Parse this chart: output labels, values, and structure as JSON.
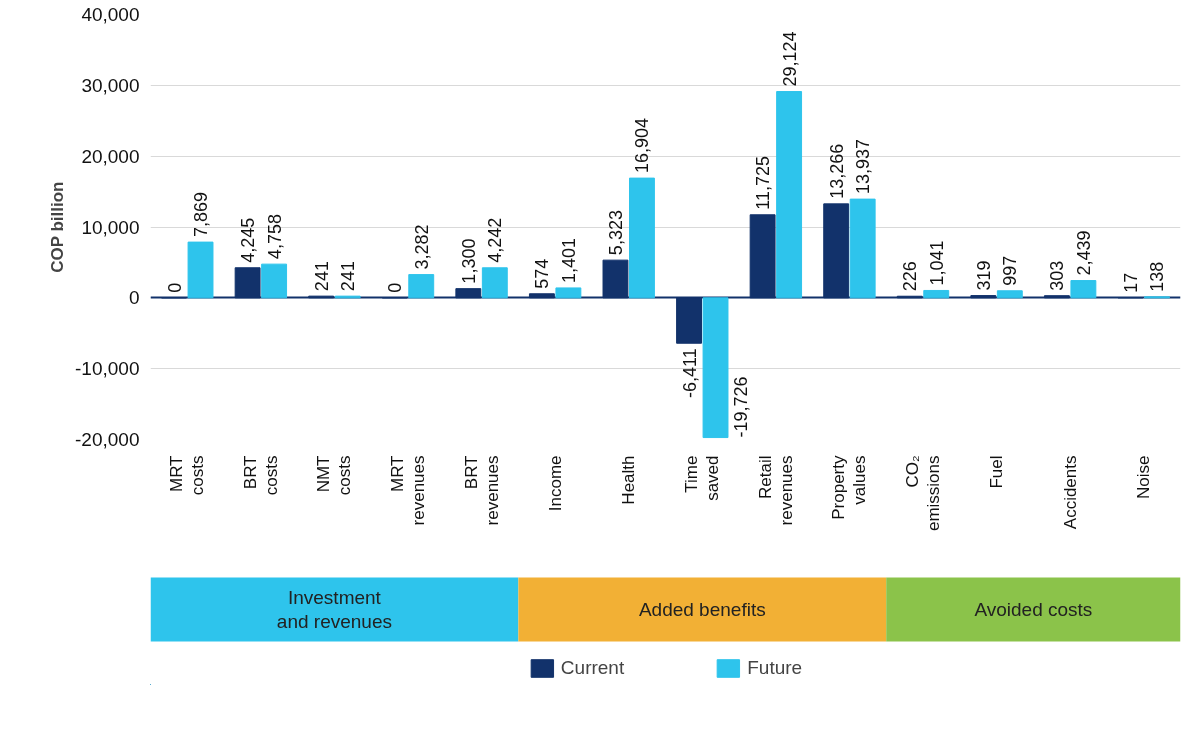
{
  "chart_data": {
    "type": "bar",
    "ylabel": "COP billion",
    "categories": [
      "MRT costs",
      "BRT costs",
      "NMT costs",
      "MRT revenues",
      "BRT revenues",
      "Income",
      "Health",
      "Time saved",
      "Retail revenues",
      "Property values",
      "CO₂ emissions",
      "Fuel",
      "Accidents",
      "Noise"
    ],
    "series": [
      {
        "name": "Current",
        "color": "#12326b",
        "values": [
          0,
          4245,
          241,
          0,
          1300,
          574,
          5323,
          -6411,
          11725,
          13266,
          226,
          319,
          303,
          17
        ],
        "value_labels": [
          "0",
          "4,245",
          "241",
          "0",
          "1,300",
          "574",
          "5,323",
          "-6,411",
          "11,725",
          "13,266",
          "226",
          "319",
          "303",
          "17"
        ]
      },
      {
        "name": "Future",
        "color": "#2ec4ec",
        "values": [
          7869,
          4758,
          241,
          3282,
          4242,
          1401,
          16904,
          -19726,
          29124,
          13937,
          1041,
          997,
          2439,
          138
        ],
        "value_labels": [
          "7,869",
          "4,758",
          "241",
          "3,282",
          "4,242",
          "1,401",
          "16,904",
          "-19,726",
          "29,124",
          "13,937",
          "1,041",
          "997",
          "2,439",
          "138"
        ]
      }
    ],
    "ylim": [
      -20000,
      40000
    ],
    "yticks": [
      {
        "value": -20000,
        "label": "-20,000"
      },
      {
        "value": -10000,
        "label": "-10,000"
      },
      0,
      {
        "value": 10000,
        "label": "10,000"
      },
      {
        "value": 20000,
        "label": "20,000"
      },
      {
        "value": 30000,
        "label": "30,000"
      },
      {
        "value": 40000,
        "label": "40,000"
      }
    ],
    "ref_lines": [
      {
        "axis": "y",
        "value": 0,
        "color": "#12326b"
      }
    ],
    "grid": "y",
    "legend": "bottom",
    "annotations": [
      "Investment and revenues",
      "Added benefits",
      "Avoided costs"
    ]
  }
}
